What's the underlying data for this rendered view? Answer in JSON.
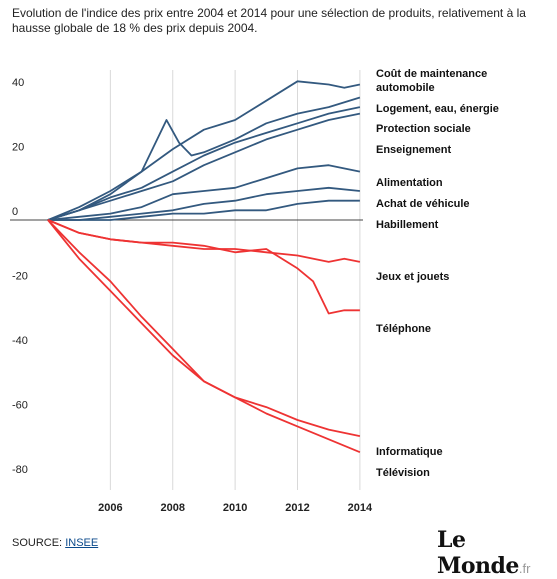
{
  "title": "Evolution de l'indice des prix entre 2004 et 2014 pour une sélection de produits, relativement à la hausse globale de 18 % des prix depuis 2004.",
  "source_label": "SOURCE:",
  "source_link": "INSEE",
  "logo_main": "Le Monde",
  "logo_suffix": ".fr",
  "colors": {
    "increase": "#33597f",
    "decrease": "#ee3333",
    "grid": "#d9d9d9",
    "zero": "#444444"
  },
  "chart_data": {
    "type": "line",
    "title": "",
    "xlabel": "",
    "ylabel": "",
    "xlim": [
      2004,
      2014.1
    ],
    "ylim": [
      -82,
      46
    ],
    "xticks": [
      "2006",
      "2008",
      "2010",
      "2012",
      "2014"
    ],
    "yticks": [
      "40",
      "20",
      "0",
      "-20",
      "-40",
      "-60",
      "-80"
    ],
    "grid": "vertical",
    "series": [
      {
        "name": "Coût de maintenance automobile",
        "color": "#33597f",
        "x": [
          2004,
          2005,
          2006,
          2007,
          2008,
          2009,
          2010,
          2011,
          2012,
          2013,
          2013.5,
          2014
        ],
        "y": [
          0,
          4,
          9,
          15,
          22,
          28,
          31,
          37,
          43,
          42,
          41,
          42
        ]
      },
      {
        "name": "Logement, eau, énergie",
        "color": "#33597f",
        "x": [
          2004,
          2005,
          2006,
          2007,
          2007.8,
          2008.2,
          2008.6,
          2009,
          2010,
          2011,
          2012,
          2013,
          2014
        ],
        "y": [
          0,
          3,
          8,
          15,
          31,
          24,
          20,
          21,
          25,
          30,
          33,
          35,
          38
        ]
      },
      {
        "name": "Protection sociale",
        "color": "#33597f",
        "x": [
          2004,
          2005,
          2006,
          2007,
          2008,
          2009,
          2010,
          2011,
          2012,
          2013,
          2014
        ],
        "y": [
          0,
          3,
          7,
          10,
          15,
          20,
          24,
          27,
          30,
          33,
          35
        ]
      },
      {
        "name": "Enseignement",
        "color": "#33597f",
        "x": [
          2004,
          2005,
          2006,
          2007,
          2008,
          2009,
          2010,
          2011,
          2012,
          2013,
          2014
        ],
        "y": [
          0,
          3,
          6,
          9,
          12,
          17,
          21,
          25,
          28,
          31,
          33
        ]
      },
      {
        "name": "Alimentation",
        "color": "#33597f",
        "x": [
          2004,
          2005,
          2006,
          2007,
          2008,
          2009,
          2010,
          2011,
          2012,
          2013,
          2014
        ],
        "y": [
          0,
          1,
          2,
          4,
          8,
          9,
          10,
          13,
          16,
          17,
          15
        ]
      },
      {
        "name": "Achat de véhicule",
        "color": "#33597f",
        "x": [
          2004,
          2005,
          2006,
          2007,
          2008,
          2009,
          2010,
          2011,
          2012,
          2013,
          2014
        ],
        "y": [
          0,
          0,
          1,
          2,
          3,
          5,
          6,
          8,
          9,
          10,
          9
        ]
      },
      {
        "name": "Habillement",
        "color": "#33597f",
        "x": [
          2004,
          2005,
          2006,
          2007,
          2008,
          2009,
          2010,
          2011,
          2012,
          2013,
          2014
        ],
        "y": [
          0,
          0,
          0,
          1,
          2,
          2,
          3,
          3,
          5,
          6,
          6
        ]
      },
      {
        "name": "Jeux et jouets",
        "color": "#ee3333",
        "x": [
          2004,
          2005,
          2006,
          2007,
          2008,
          2009,
          2010,
          2011,
          2012,
          2013,
          2013.5,
          2014
        ],
        "y": [
          0,
          -4,
          -6,
          -7,
          -8,
          -9,
          -9,
          -10,
          -11,
          -13,
          -12,
          -13
        ]
      },
      {
        "name": "Téléphone",
        "color": "#ee3333",
        "x": [
          2004,
          2005,
          2006,
          2007,
          2008,
          2009,
          2010,
          2011,
          2012,
          2012.5,
          2013,
          2013.5,
          2014
        ],
        "y": [
          0,
          -4,
          -6,
          -7,
          -7,
          -8,
          -10,
          -9,
          -15,
          -19,
          -29,
          -28,
          -28
        ]
      },
      {
        "name": "Informatique",
        "color": "#ee3333",
        "x": [
          2004,
          2005,
          2006,
          2007,
          2008,
          2009,
          2010,
          2011,
          2012,
          2013,
          2014
        ],
        "y": [
          0,
          -12,
          -22,
          -32,
          -42,
          -50,
          -55,
          -58,
          -62,
          -65,
          -67
        ]
      },
      {
        "name": "Télévision",
        "color": "#ee3333",
        "x": [
          2004,
          2005,
          2006,
          2007,
          2008,
          2009,
          2010,
          2011,
          2012,
          2013,
          2014
        ],
        "y": [
          0,
          -10,
          -19,
          -30,
          -40,
          -50,
          -55,
          -60,
          -64,
          -68,
          -72
        ]
      }
    ]
  }
}
